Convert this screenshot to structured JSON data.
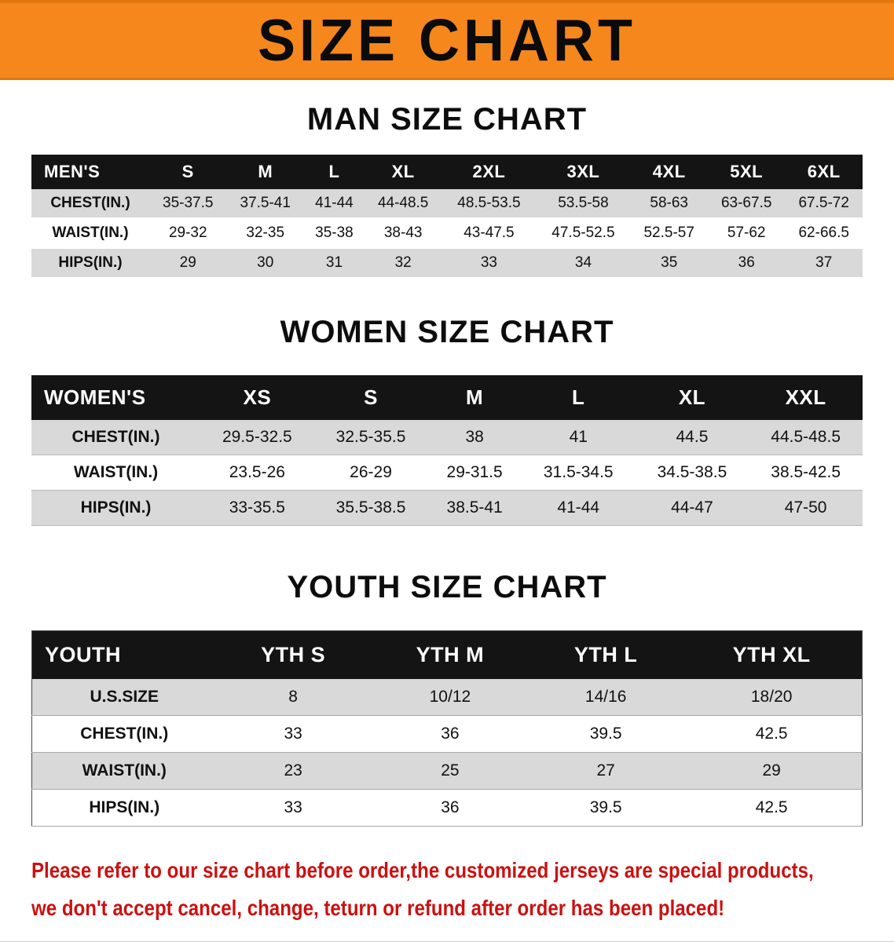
{
  "banner": {
    "title": "SIZE CHART"
  },
  "sections": [
    {
      "id": "men",
      "heading": "MAN SIZE CHART",
      "table": {
        "header": [
          "MEN'S",
          "S",
          "M",
          "L",
          "XL",
          "2XL",
          "3XL",
          "4XL",
          "5XL",
          "6XL"
        ],
        "rows": [
          {
            "label": "CHEST(IN.)",
            "values": [
              "35-37.5",
              "37.5-41",
              "41-44",
              "44-48.5",
              "48.5-53.5",
              "53.5-58",
              "58-63",
              "63-67.5",
              "67.5-72"
            ]
          },
          {
            "label": "WAIST(IN.)",
            "values": [
              "29-32",
              "32-35",
              "35-38",
              "38-43",
              "43-47.5",
              "47.5-52.5",
              "52.5-57",
              "57-62",
              "62-66.5"
            ]
          },
          {
            "label": "HIPS(IN.)",
            "values": [
              "29",
              "30",
              "31",
              "32",
              "33",
              "34",
              "35",
              "36",
              "37"
            ]
          }
        ]
      }
    },
    {
      "id": "women",
      "heading": "WOMEN SIZE CHART",
      "table": {
        "header": [
          "WOMEN'S",
          "XS",
          "S",
          "M",
          "L",
          "XL",
          "XXL"
        ],
        "rows": [
          {
            "label": "CHEST(IN.)",
            "values": [
              "29.5-32.5",
              "32.5-35.5",
              "38",
              "41",
              "44.5",
              "44.5-48.5"
            ]
          },
          {
            "label": "WAIST(IN.)",
            "values": [
              "23.5-26",
              "26-29",
              "29-31.5",
              "31.5-34.5",
              "34.5-38.5",
              "38.5-42.5"
            ]
          },
          {
            "label": "HIPS(IN.)",
            "values": [
              "33-35.5",
              "35.5-38.5",
              "38.5-41",
              "41-44",
              "44-47",
              "47-50"
            ]
          }
        ]
      }
    },
    {
      "id": "youth",
      "heading": "YOUTH SIZE CHART",
      "table": {
        "header": [
          "YOUTH",
          "YTH S",
          "YTH M",
          "YTH L",
          "YTH XL"
        ],
        "rows": [
          {
            "label": "U.S.SIZE",
            "values": [
              "8",
              "10/12",
              "14/16",
              "18/20"
            ]
          },
          {
            "label": "CHEST(IN.)",
            "values": [
              "33",
              "36",
              "39.5",
              "42.5"
            ]
          },
          {
            "label": "WAIST(IN.)",
            "values": [
              "23",
              "25",
              "27",
              "29"
            ]
          },
          {
            "label": "HIPS(IN.)",
            "values": [
              "33",
              "36",
              "39.5",
              "42.5"
            ]
          }
        ]
      }
    }
  ],
  "disclaimer": {
    "line1": "Please refer to our size chart before order,the customized jerseys are special products,",
    "line2": "we don't accept cancel, change, teturn or refund after order has been placed!"
  },
  "colors": {
    "banner_orange": "#F6871D",
    "banner_edge": "#E2760F",
    "header_black": "#141414",
    "row_gray": "#D9D9D9",
    "disclaimer_red": "#CC1010"
  }
}
